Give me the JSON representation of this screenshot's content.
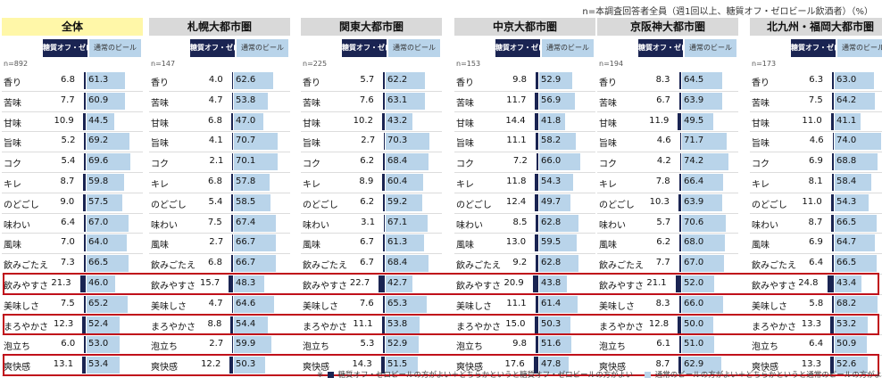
{
  "note": "n=本調査回答者全員（週1回以上、糖質オフ・ゼロビール飲酒者）（%）",
  "headers": {
    "zero": "糖質オフ・ゼロ",
    "regular": "通常のビール"
  },
  "footnote": {
    "mark": "※",
    "zero_text": "糖質オフ・ゼロビールの方がよい＋どちらかというと糖質オフ・ゼロビールの方がよい",
    "regular_text": "通常のビールの方がよい＋どちらかというと通常のビールの方がよい"
  },
  "colors": {
    "zero": "#1a2452",
    "regular": "#b9d4ea",
    "highlight_border": "#c0101a",
    "title_total_bg": "#fff7a8",
    "title_bg": "#d9d9d9"
  },
  "highlighted_rows": [
    "飲みやすさ",
    "まろやかさ",
    "爽快感"
  ],
  "chart_data": [
    {
      "type": "bar",
      "title": "全体",
      "n": "n=892",
      "categories": [
        "香り",
        "苦味",
        "甘味",
        "旨味",
        "コク",
        "キレ",
        "のどごし",
        "味わい",
        "風味",
        "飲みごたえ",
        "飲みやすさ",
        "美味しさ",
        "まろやかさ",
        "泡立ち",
        "爽快感"
      ],
      "series": [
        {
          "name": "糖質オフ・ゼロ",
          "values": [
            6.8,
            7.7,
            10.9,
            5.2,
            5.4,
            8.7,
            9.0,
            6.4,
            7.0,
            7.3,
            21.3,
            7.5,
            12.3,
            6.0,
            13.1
          ]
        },
        {
          "name": "通常のビール",
          "values": [
            61.3,
            60.9,
            44.5,
            69.2,
            69.6,
            59.8,
            57.5,
            67.0,
            64.0,
            66.5,
            46.0,
            65.2,
            52.4,
            53.0,
            53.4
          ]
        }
      ]
    },
    {
      "type": "bar",
      "title": "札幌大都市圏",
      "n": "n=147",
      "categories": [
        "香り",
        "苦味",
        "甘味",
        "旨味",
        "コク",
        "キレ",
        "のどごし",
        "味わい",
        "風味",
        "飲みごたえ",
        "飲みやすさ",
        "美味しさ",
        "まろやかさ",
        "泡立ち",
        "爽快感"
      ],
      "series": [
        {
          "name": "糖質オフ・ゼロ",
          "values": [
            4.0,
            4.7,
            6.8,
            4.1,
            2.1,
            6.8,
            5.4,
            7.5,
            2.7,
            6.8,
            15.7,
            4.7,
            8.8,
            2.7,
            12.2
          ]
        },
        {
          "name": "通常のビール",
          "values": [
            62.6,
            53.8,
            47.0,
            70.7,
            70.1,
            57.8,
            58.5,
            67.4,
            66.7,
            66.7,
            48.3,
            64.6,
            54.4,
            59.9,
            50.3
          ]
        }
      ]
    },
    {
      "type": "bar",
      "title": "関東大都市圏",
      "n": "n=225",
      "categories": [
        "香り",
        "苦味",
        "甘味",
        "旨味",
        "コク",
        "キレ",
        "のどごし",
        "味わい",
        "風味",
        "飲みごたえ",
        "飲みやすさ",
        "美味しさ",
        "まろやかさ",
        "泡立ち",
        "爽快感"
      ],
      "series": [
        {
          "name": "糖質オフ・ゼロ",
          "values": [
            5.7,
            7.6,
            10.2,
            2.7,
            6.2,
            8.9,
            6.2,
            3.1,
            6.7,
            6.7,
            22.7,
            7.6,
            11.1,
            5.3,
            14.3
          ]
        },
        {
          "name": "通常のビール",
          "values": [
            62.2,
            63.1,
            43.2,
            70.3,
            68.4,
            60.4,
            59.2,
            67.1,
            61.3,
            68.4,
            42.7,
            65.3,
            53.8,
            52.9,
            51.5
          ]
        }
      ]
    },
    {
      "type": "bar",
      "title": "中京大都市圏",
      "n": "n=153",
      "categories": [
        "香り",
        "苦味",
        "甘味",
        "旨味",
        "コク",
        "キレ",
        "のどごし",
        "味わい",
        "風味",
        "飲みごたえ",
        "飲みやすさ",
        "美味しさ",
        "まろやかさ",
        "泡立ち",
        "爽快感"
      ],
      "series": [
        {
          "name": "糖質オフ・ゼロ",
          "values": [
            9.8,
            11.7,
            14.4,
            11.1,
            7.2,
            11.8,
            12.4,
            8.5,
            13.0,
            9.2,
            20.9,
            11.1,
            15.0,
            9.8,
            17.6
          ]
        },
        {
          "name": "通常のビール",
          "values": [
            52.9,
            56.9,
            41.8,
            58.2,
            66.0,
            54.3,
            49.7,
            62.8,
            59.5,
            62.8,
            43.8,
            61.4,
            50.3,
            51.6,
            47.8
          ]
        }
      ]
    },
    {
      "type": "bar",
      "title": "京阪神大都市圏",
      "n": "n=194",
      "categories": [
        "香り",
        "苦味",
        "甘味",
        "旨味",
        "コク",
        "キレ",
        "のどごし",
        "味わい",
        "風味",
        "飲みごたえ",
        "飲みやすさ",
        "美味しさ",
        "まろやかさ",
        "泡立ち",
        "爽快感"
      ],
      "series": [
        {
          "name": "糖質オフ・ゼロ",
          "values": [
            8.3,
            6.7,
            11.9,
            4.6,
            4.2,
            7.8,
            10.3,
            5.7,
            6.2,
            7.7,
            21.1,
            8.3,
            12.8,
            6.1,
            8.7
          ]
        },
        {
          "name": "通常のビール",
          "values": [
            64.5,
            63.9,
            49.5,
            71.7,
            74.2,
            66.4,
            63.9,
            70.6,
            68.0,
            67.0,
            52.0,
            66.0,
            50.0,
            51.0,
            62.9
          ]
        }
      ]
    },
    {
      "type": "bar",
      "title": "北九州・福岡大都市圏",
      "n": "n=173",
      "categories": [
        "香り",
        "苦味",
        "甘味",
        "旨味",
        "コク",
        "キレ",
        "のどごし",
        "味わい",
        "風味",
        "飲みごたえ",
        "飲みやすさ",
        "美味しさ",
        "まろやかさ",
        "泡立ち",
        "爽快感"
      ],
      "series": [
        {
          "name": "糖質オフ・ゼロ",
          "values": [
            6.3,
            7.5,
            11.0,
            4.6,
            6.9,
            8.1,
            11.0,
            8.7,
            6.9,
            6.4,
            24.8,
            5.8,
            13.3,
            6.4,
            13.3
          ]
        },
        {
          "name": "通常のビール",
          "values": [
            63.0,
            64.2,
            41.1,
            74.0,
            68.8,
            58.4,
            54.3,
            66.5,
            64.7,
            66.5,
            43.4,
            68.2,
            53.2,
            50.9,
            52.6
          ]
        }
      ]
    }
  ]
}
